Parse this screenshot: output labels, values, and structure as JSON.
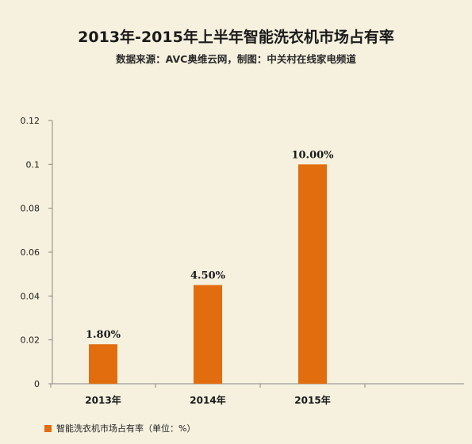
{
  "header": {
    "title": "2013年-2015年上半年智能洗衣机市场占有率",
    "subtitle": "数据来源：AVC奥维云网，制图：中关村在线家电频道"
  },
  "colors": {
    "bar": "#e26d0f",
    "background": "#f5f1de",
    "axis": "#888888"
  },
  "chart_data": {
    "type": "bar",
    "title": "2013年-2015年上半年智能洗衣机市场占有率",
    "subtitle": "数据来源：AVC奥维云网，制图：中关村在线家电频道",
    "categories": [
      "2013年",
      "2014年",
      "2015年"
    ],
    "series": [
      {
        "name": "智能洗衣机市场占有率（单位：%）",
        "values": [
          0.018,
          0.045,
          0.1
        ],
        "data_labels": [
          "1.80%",
          "4.50%",
          "10.00%"
        ]
      }
    ],
    "yticks": [
      "0",
      "0.02",
      "0.04",
      "0.06",
      "0.08",
      "0.1",
      "0.12"
    ],
    "ylim": [
      0,
      0.12
    ],
    "grid": false,
    "legend_position": "bottom-left"
  }
}
